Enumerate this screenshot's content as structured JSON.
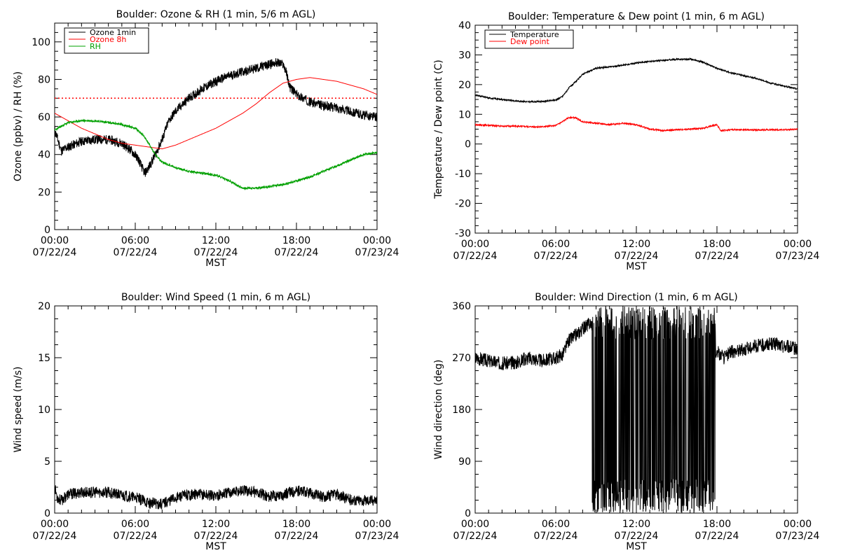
{
  "chart_data": [
    {
      "id": "ozone",
      "type": "line",
      "title": "Boulder: Ozone & RH (1 min, 5/6 m AGL)",
      "xlabel": "MST",
      "ylabel": "Ozone (ppbv) / RH (%)",
      "ylim": [
        0,
        110
      ],
      "yticks": [
        0,
        20,
        40,
        60,
        80,
        100
      ],
      "xlim": [
        0,
        24
      ],
      "xticks": [
        0,
        6,
        12,
        18,
        24
      ],
      "xtick_labels": [
        "00:00",
        "06:00",
        "12:00",
        "18:00",
        "00:00"
      ],
      "xtick_dates": [
        "07/22/24",
        "07/22/24",
        "07/22/24",
        "07/22/24",
        "07/23/24"
      ],
      "legend": [
        "Ozone 1min",
        "Ozone 8h",
        "RH"
      ],
      "legend_position": "top-left",
      "reference_line": {
        "y": 70,
        "color": "#ff0000",
        "style": "dotted"
      },
      "series": [
        {
          "name": "Ozone 1min",
          "color": "#000000",
          "noise": 2.5,
          "seed": 11,
          "x": [
            0,
            0.5,
            1,
            2,
            3,
            4,
            5,
            5.7,
            6.2,
            6.7,
            7,
            7.5,
            8,
            8.5,
            9,
            10,
            11,
            12,
            13,
            14,
            15,
            16,
            16.5,
            17,
            17.2,
            17.5,
            18,
            19,
            20,
            21,
            22,
            23,
            24
          ],
          "y": [
            53,
            42,
            44,
            47,
            48,
            48,
            46,
            42,
            38,
            30,
            33,
            40,
            48,
            58,
            63,
            70,
            75,
            79,
            82,
            84,
            86,
            88,
            89,
            88,
            85,
            76,
            72,
            68,
            66,
            65,
            63,
            61,
            60
          ]
        },
        {
          "name": "Ozone 8h",
          "color": "#ff0000",
          "noise": 0,
          "seed": 0,
          "x": [
            0,
            1,
            2,
            3,
            4,
            5,
            6,
            7,
            8,
            9,
            10,
            11,
            12,
            13,
            14,
            15,
            16,
            17,
            18,
            19,
            20,
            21,
            22,
            23,
            24
          ],
          "y": [
            62,
            58,
            54,
            51,
            48,
            46,
            45,
            44,
            43,
            45,
            48,
            51,
            54,
            58,
            62,
            67,
            73,
            78,
            80,
            81,
            80,
            79,
            77,
            75,
            72
          ]
        },
        {
          "name": "RH",
          "color": "#00a000",
          "noise": 0.6,
          "seed": 23,
          "x": [
            0,
            0.5,
            1,
            2,
            3,
            4,
            5,
            6,
            6.5,
            7,
            7.5,
            8,
            9,
            10,
            11,
            12,
            13,
            14,
            15,
            16,
            17,
            18,
            19,
            20,
            21,
            22,
            23,
            24
          ],
          "y": [
            53,
            55,
            57,
            58,
            58,
            57,
            56,
            54,
            51,
            46,
            40,
            36,
            33,
            31,
            30,
            29,
            26,
            22,
            22,
            23,
            24,
            26,
            28,
            31,
            34,
            37,
            40,
            41
          ]
        }
      ]
    },
    {
      "id": "temp",
      "type": "line",
      "title": "Boulder: Temperature & Dew point (1 min, 6 m AGL)",
      "xlabel": "MST",
      "ylabel": "Temperature / Dew point (C)",
      "ylim": [
        -30,
        40
      ],
      "yticks": [
        -30,
        -20,
        -10,
        0,
        10,
        20,
        30,
        40
      ],
      "xlim": [
        0,
        24
      ],
      "xticks": [
        0,
        6,
        12,
        18,
        24
      ],
      "xtick_labels": [
        "00:00",
        "06:00",
        "12:00",
        "18:00",
        "00:00"
      ],
      "xtick_dates": [
        "07/22/24",
        "07/22/24",
        "07/22/24",
        "07/22/24",
        "07/23/24"
      ],
      "legend": [
        "Temperature",
        "Dew point"
      ],
      "legend_position": "top-left",
      "series": [
        {
          "name": "Temperature",
          "color": "#000000",
          "noise": 0.25,
          "seed": 31,
          "x": [
            0,
            1,
            2,
            3,
            4,
            5,
            6,
            6.5,
            7,
            7.5,
            8,
            9,
            10,
            11,
            12,
            13,
            14,
            15,
            16,
            17,
            18,
            19,
            20,
            21,
            22,
            23,
            24
          ],
          "y": [
            16.5,
            15.5,
            15,
            14.5,
            14.2,
            14.3,
            14.8,
            16,
            19,
            21,
            23.5,
            25.5,
            26,
            26.5,
            27.3,
            27.8,
            28.2,
            28.5,
            28.6,
            27.5,
            25.5,
            24,
            23,
            22,
            20.5,
            19.5,
            18.5
          ]
        },
        {
          "name": "Dew point",
          "color": "#ff0000",
          "noise": 0.25,
          "seed": 41,
          "x": [
            0,
            1,
            2,
            3,
            4,
            5,
            6,
            6.5,
            7,
            7.5,
            8,
            9,
            10,
            11,
            12,
            13,
            14,
            15,
            16,
            17,
            17.5,
            18,
            18.3,
            19,
            20,
            21,
            22,
            23,
            24
          ],
          "y": [
            6.5,
            6.3,
            6,
            6,
            5.8,
            5.8,
            6.2,
            7.5,
            9,
            8.8,
            7.5,
            7,
            6.5,
            7,
            6.5,
            5,
            4.5,
            4.8,
            5,
            5.3,
            6,
            6.5,
            4.5,
            4.8,
            4.8,
            4.7,
            4.8,
            4.8,
            5
          ]
        }
      ]
    },
    {
      "id": "wspd",
      "type": "line",
      "title": "Boulder: Wind Speed (1 min, 6 m AGL)",
      "xlabel": "MST",
      "ylabel": "Wind speed (m/s)",
      "ylim": [
        0,
        20
      ],
      "yticks": [
        0,
        5,
        10,
        15,
        20
      ],
      "xlim": [
        0,
        24
      ],
      "xticks": [
        0,
        6,
        12,
        18,
        24
      ],
      "xtick_labels": [
        "00:00",
        "06:00",
        "12:00",
        "18:00",
        "00:00"
      ],
      "xtick_dates": [
        "07/22/24",
        "07/22/24",
        "07/22/24",
        "07/22/24",
        "07/23/24"
      ],
      "series": [
        {
          "name": "",
          "color": "#000000",
          "noise": 0.55,
          "seed": 53,
          "x": [
            0,
            0.2,
            0.5,
            1,
            2,
            3,
            4,
            5,
            6,
            7,
            8,
            9,
            10,
            11,
            12,
            13,
            14,
            15,
            16,
            17,
            18,
            19,
            20,
            21,
            22,
            23,
            24
          ],
          "y": [
            2.5,
            1.5,
            1.2,
            1.8,
            2,
            2,
            2,
            1.7,
            1.5,
            1,
            0.9,
            1.5,
            1.8,
            1.8,
            1.7,
            2,
            2.2,
            2,
            1.6,
            1.8,
            2.2,
            1.9,
            1.6,
            1.8,
            1.3,
            1.2,
            1.3
          ]
        }
      ]
    },
    {
      "id": "wdir",
      "type": "line",
      "title": "Boulder: Wind Direction (1 min, 6 m AGL)",
      "xlabel": "MST",
      "ylabel": "Wind direction (deg)",
      "ylim": [
        0,
        360
      ],
      "yticks": [
        0,
        90,
        180,
        270,
        360
      ],
      "xlim": [
        0,
        24
      ],
      "xticks": [
        0,
        6,
        12,
        18,
        24
      ],
      "xtick_labels": [
        "00:00",
        "06:00",
        "12:00",
        "18:00",
        "00:00"
      ],
      "xtick_dates": [
        "07/22/24",
        "07/22/24",
        "07/22/24",
        "07/22/24",
        "07/23/24"
      ],
      "wrap_segment": [
        8.7,
        17.9
      ],
      "series": [
        {
          "name": "",
          "color": "#000000",
          "noise": 12,
          "seed": 67,
          "x": [
            0,
            1,
            2,
            3,
            4,
            5,
            6,
            6.5,
            7,
            7.5,
            8,
            8.5,
            18,
            18.5,
            19,
            20,
            21,
            22,
            23,
            24
          ],
          "y": [
            270,
            265,
            260,
            262,
            270,
            265,
            270,
            275,
            300,
            310,
            320,
            330,
            280,
            270,
            280,
            285,
            290,
            295,
            290,
            285
          ]
        }
      ]
    }
  ]
}
